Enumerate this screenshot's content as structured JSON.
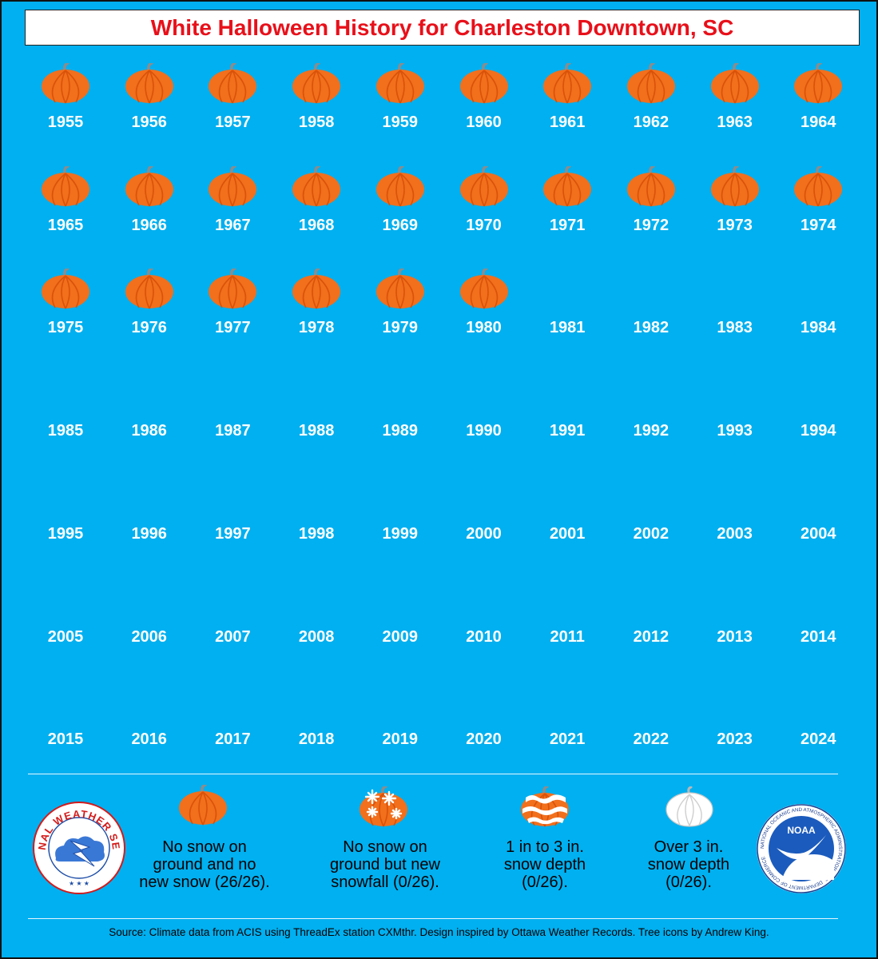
{
  "title": "White Halloween History for Charleston Downtown, SC",
  "colors": {
    "background": "#00b0f0",
    "title": "#e8101a",
    "pumpkin": "#f26f1c",
    "text": "#ffffff"
  },
  "chart_data": {
    "type": "table",
    "title": "White Halloween History for Charleston Downtown, SC",
    "categories": [
      "No snow on ground and no new snow",
      "No snow on ground but new snowfall",
      "1 in to 3 in. snow depth",
      "Over 3 in. snow depth"
    ],
    "years": [
      {
        "year": "1955",
        "category": "no-snow"
      },
      {
        "year": "1956",
        "category": "no-snow"
      },
      {
        "year": "1957",
        "category": "no-snow"
      },
      {
        "year": "1958",
        "category": "no-snow"
      },
      {
        "year": "1959",
        "category": "no-snow"
      },
      {
        "year": "1960",
        "category": "no-snow"
      },
      {
        "year": "1961",
        "category": "no-snow"
      },
      {
        "year": "1962",
        "category": "no-snow"
      },
      {
        "year": "1963",
        "category": "no-snow"
      },
      {
        "year": "1964",
        "category": "no-snow"
      },
      {
        "year": "1965",
        "category": "no-snow"
      },
      {
        "year": "1966",
        "category": "no-snow"
      },
      {
        "year": "1967",
        "category": "no-snow"
      },
      {
        "year": "1968",
        "category": "no-snow"
      },
      {
        "year": "1969",
        "category": "no-snow"
      },
      {
        "year": "1970",
        "category": "no-snow"
      },
      {
        "year": "1971",
        "category": "no-snow"
      },
      {
        "year": "1972",
        "category": "no-snow"
      },
      {
        "year": "1973",
        "category": "no-snow"
      },
      {
        "year": "1974",
        "category": "no-snow"
      },
      {
        "year": "1975",
        "category": "no-snow"
      },
      {
        "year": "1976",
        "category": "no-snow"
      },
      {
        "year": "1977",
        "category": "no-snow"
      },
      {
        "year": "1978",
        "category": "no-snow"
      },
      {
        "year": "1979",
        "category": "no-snow"
      },
      {
        "year": "1980",
        "category": "no-snow"
      },
      {
        "year": "1981",
        "category": null
      },
      {
        "year": "1982",
        "category": null
      },
      {
        "year": "1983",
        "category": null
      },
      {
        "year": "1984",
        "category": null
      },
      {
        "year": "1985",
        "category": null
      },
      {
        "year": "1986",
        "category": null
      },
      {
        "year": "1987",
        "category": null
      },
      {
        "year": "1988",
        "category": null
      },
      {
        "year": "1989",
        "category": null
      },
      {
        "year": "1990",
        "category": null
      },
      {
        "year": "1991",
        "category": null
      },
      {
        "year": "1992",
        "category": null
      },
      {
        "year": "1993",
        "category": null
      },
      {
        "year": "1994",
        "category": null
      },
      {
        "year": "1995",
        "category": null
      },
      {
        "year": "1996",
        "category": null
      },
      {
        "year": "1997",
        "category": null
      },
      {
        "year": "1998",
        "category": null
      },
      {
        "year": "1999",
        "category": null
      },
      {
        "year": "2000",
        "category": null
      },
      {
        "year": "2001",
        "category": null
      },
      {
        "year": "2002",
        "category": null
      },
      {
        "year": "2003",
        "category": null
      },
      {
        "year": "2004",
        "category": null
      },
      {
        "year": "2005",
        "category": null
      },
      {
        "year": "2006",
        "category": null
      },
      {
        "year": "2007",
        "category": null
      },
      {
        "year": "2008",
        "category": null
      },
      {
        "year": "2009",
        "category": null
      },
      {
        "year": "2010",
        "category": null
      },
      {
        "year": "2011",
        "category": null
      },
      {
        "year": "2012",
        "category": null
      },
      {
        "year": "2013",
        "category": null
      },
      {
        "year": "2014",
        "category": null
      },
      {
        "year": "2015",
        "category": null
      },
      {
        "year": "2016",
        "category": null
      },
      {
        "year": "2017",
        "category": null
      },
      {
        "year": "2018",
        "category": null
      },
      {
        "year": "2019",
        "category": null
      },
      {
        "year": "2020",
        "category": null
      },
      {
        "year": "2021",
        "category": null
      },
      {
        "year": "2022",
        "category": null
      },
      {
        "year": "2023",
        "category": null
      },
      {
        "year": "2024",
        "category": null
      }
    ]
  },
  "legend": {
    "no_snow": [
      "No snow on",
      "ground and no",
      "new snow (26/26)."
    ],
    "new_snowfall": [
      "No snow on",
      "ground but new",
      "snowfall (0/26)."
    ],
    "depth_1_3": [
      "1 in to 3 in.",
      "snow depth",
      "(0/26)."
    ],
    "depth_over_3": [
      "Over 3 in.",
      "snow depth",
      "(0/26)."
    ]
  },
  "logos": {
    "nws_text": "NATIONAL WEATHER SERVICE",
    "noaa_label": "NOAA",
    "noaa_ring_text": "NATIONAL OCEANIC AND ATMOSPHERIC ADMINISTRATION · U.S. DEPARTMENT OF COMMERCE"
  },
  "source": "Source: Climate data from ACIS using ThreadEx station CXMthr. Design inspired by Ottawa Weather Records. Tree icons by Andrew King."
}
